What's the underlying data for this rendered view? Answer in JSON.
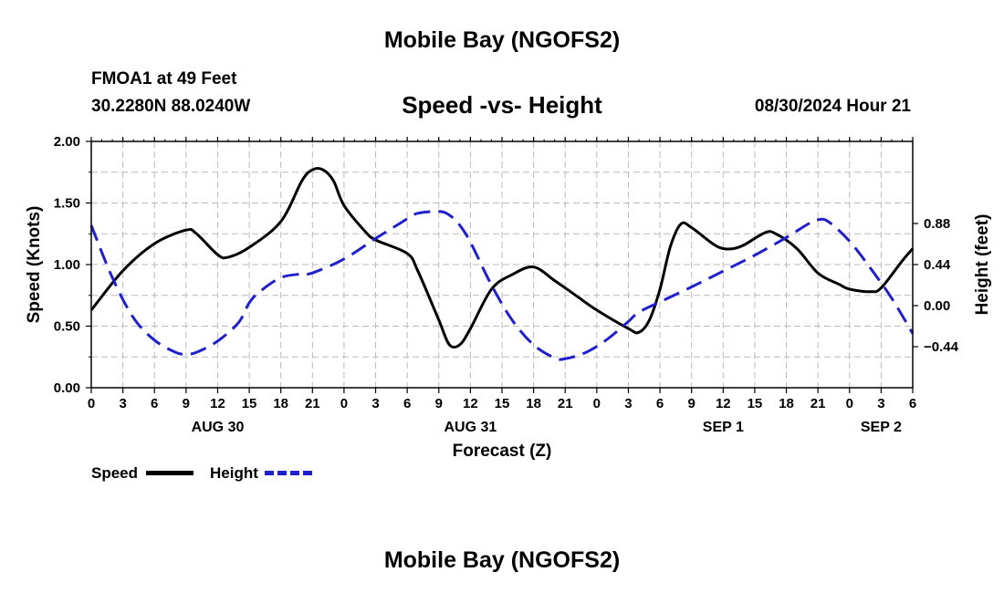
{
  "chart_data": {
    "type": "line",
    "suptitle": "Mobile Bay (NGOFS2)",
    "title": "Speed -vs- Height",
    "station": "FMOA1 at 49 Feet",
    "coords": "30.2280N  88.0240W",
    "run_time": "08/30/2024 Hour 21",
    "xlabel": "Forecast (Z)",
    "ylabel_left": "Speed (Knots)",
    "ylabel_right": "Height (feet)",
    "x_range_hours": [
      0,
      78
    ],
    "x_tick_labels": [
      "0",
      "3",
      "6",
      "9",
      "12",
      "15",
      "18",
      "21",
      "0",
      "3",
      "6",
      "9",
      "12",
      "15",
      "18",
      "21",
      "0",
      "3",
      "6",
      "9",
      "12",
      "15",
      "18",
      "21",
      "0",
      "3",
      "6"
    ],
    "day_labels": [
      {
        "label": "AUG 30",
        "hour": 12
      },
      {
        "label": "AUG 31",
        "hour": 36
      },
      {
        "label": "SEP 1",
        "hour": 60
      },
      {
        "label": "SEP 2",
        "hour": 75
      }
    ],
    "ylim_left": [
      0,
      2
    ],
    "yticks_left": [
      "0.00",
      "0.50",
      "1.00",
      "1.50",
      "2.00"
    ],
    "ylim_right": [
      -0.88,
      1.76
    ],
    "yticks_right": [
      {
        "value": -0.44,
        "label": "-0.44"
      },
      {
        "value": 0,
        "label": "0.00"
      },
      {
        "value": 0.44,
        "label": "0.44"
      },
      {
        "value": 0.88,
        "label": "0.88"
      }
    ],
    "grid": true,
    "series": [
      {
        "name": "Speed",
        "axis": "left",
        "color": "#000000",
        "style": "solid",
        "points": [
          [
            0,
            0.63
          ],
          [
            3,
            0.95
          ],
          [
            6,
            1.17
          ],
          [
            9,
            1.28
          ],
          [
            10,
            1.25
          ],
          [
            12,
            1.08
          ],
          [
            13,
            1.06
          ],
          [
            15,
            1.14
          ],
          [
            18,
            1.35
          ],
          [
            20,
            1.68
          ],
          [
            21,
            1.77
          ],
          [
            22,
            1.77
          ],
          [
            23,
            1.68
          ],
          [
            24,
            1.48
          ],
          [
            26,
            1.27
          ],
          [
            27,
            1.2
          ],
          [
            30,
            1.09
          ],
          [
            31,
            0.95
          ],
          [
            33,
            0.55
          ],
          [
            34,
            0.35
          ],
          [
            35,
            0.35
          ],
          [
            36,
            0.48
          ],
          [
            38,
            0.8
          ],
          [
            40,
            0.92
          ],
          [
            42,
            0.98
          ],
          [
            44,
            0.87
          ],
          [
            46,
            0.75
          ],
          [
            48,
            0.63
          ],
          [
            51,
            0.48
          ],
          [
            52,
            0.45
          ],
          [
            53,
            0.55
          ],
          [
            54,
            0.8
          ],
          [
            55,
            1.15
          ],
          [
            56,
            1.33
          ],
          [
            57,
            1.3
          ],
          [
            59,
            1.17
          ],
          [
            60,
            1.13
          ],
          [
            61,
            1.13
          ],
          [
            62,
            1.16
          ],
          [
            64,
            1.26
          ],
          [
            65,
            1.25
          ],
          [
            67,
            1.13
          ],
          [
            69,
            0.93
          ],
          [
            71,
            0.84
          ],
          [
            72,
            0.8
          ],
          [
            74,
            0.78
          ],
          [
            75,
            0.81
          ],
          [
            77,
            1.03
          ],
          [
            78,
            1.13
          ]
        ]
      },
      {
        "name": "Height",
        "axis": "right",
        "color": "#1f1fcc",
        "style": "dashed",
        "points": [
          [
            0,
            0.86
          ],
          [
            2,
            0.3
          ],
          [
            4,
            -0.13
          ],
          [
            6,
            -0.37
          ],
          [
            8,
            -0.5
          ],
          [
            9,
            -0.52
          ],
          [
            10,
            -0.5
          ],
          [
            12,
            -0.38
          ],
          [
            14,
            -0.18
          ],
          [
            15,
            0.03
          ],
          [
            16,
            0.15
          ],
          [
            18,
            0.3
          ],
          [
            20,
            0.34
          ],
          [
            21,
            0.35
          ],
          [
            24,
            0.5
          ],
          [
            27,
            0.72
          ],
          [
            29,
            0.86
          ],
          [
            30,
            0.93
          ],
          [
            31,
            0.99
          ],
          [
            33,
            1.01
          ],
          [
            34,
            0.97
          ],
          [
            35,
            0.86
          ],
          [
            36,
            0.68
          ],
          [
            38,
            0.22
          ],
          [
            40,
            -0.16
          ],
          [
            42,
            -0.42
          ],
          [
            44,
            -0.56
          ],
          [
            45,
            -0.57
          ],
          [
            47,
            -0.5
          ],
          [
            49,
            -0.36
          ],
          [
            51,
            -0.17
          ],
          [
            52,
            -0.07
          ],
          [
            54,
            0.04
          ],
          [
            57,
            0.2
          ],
          [
            60,
            0.37
          ],
          [
            63,
            0.54
          ],
          [
            66,
            0.73
          ],
          [
            68,
            0.87
          ],
          [
            69,
            0.92
          ],
          [
            70,
            0.9
          ],
          [
            72,
            0.69
          ],
          [
            74,
            0.4
          ],
          [
            76,
            0.08
          ],
          [
            78,
            -0.3
          ]
        ]
      }
    ]
  }
}
